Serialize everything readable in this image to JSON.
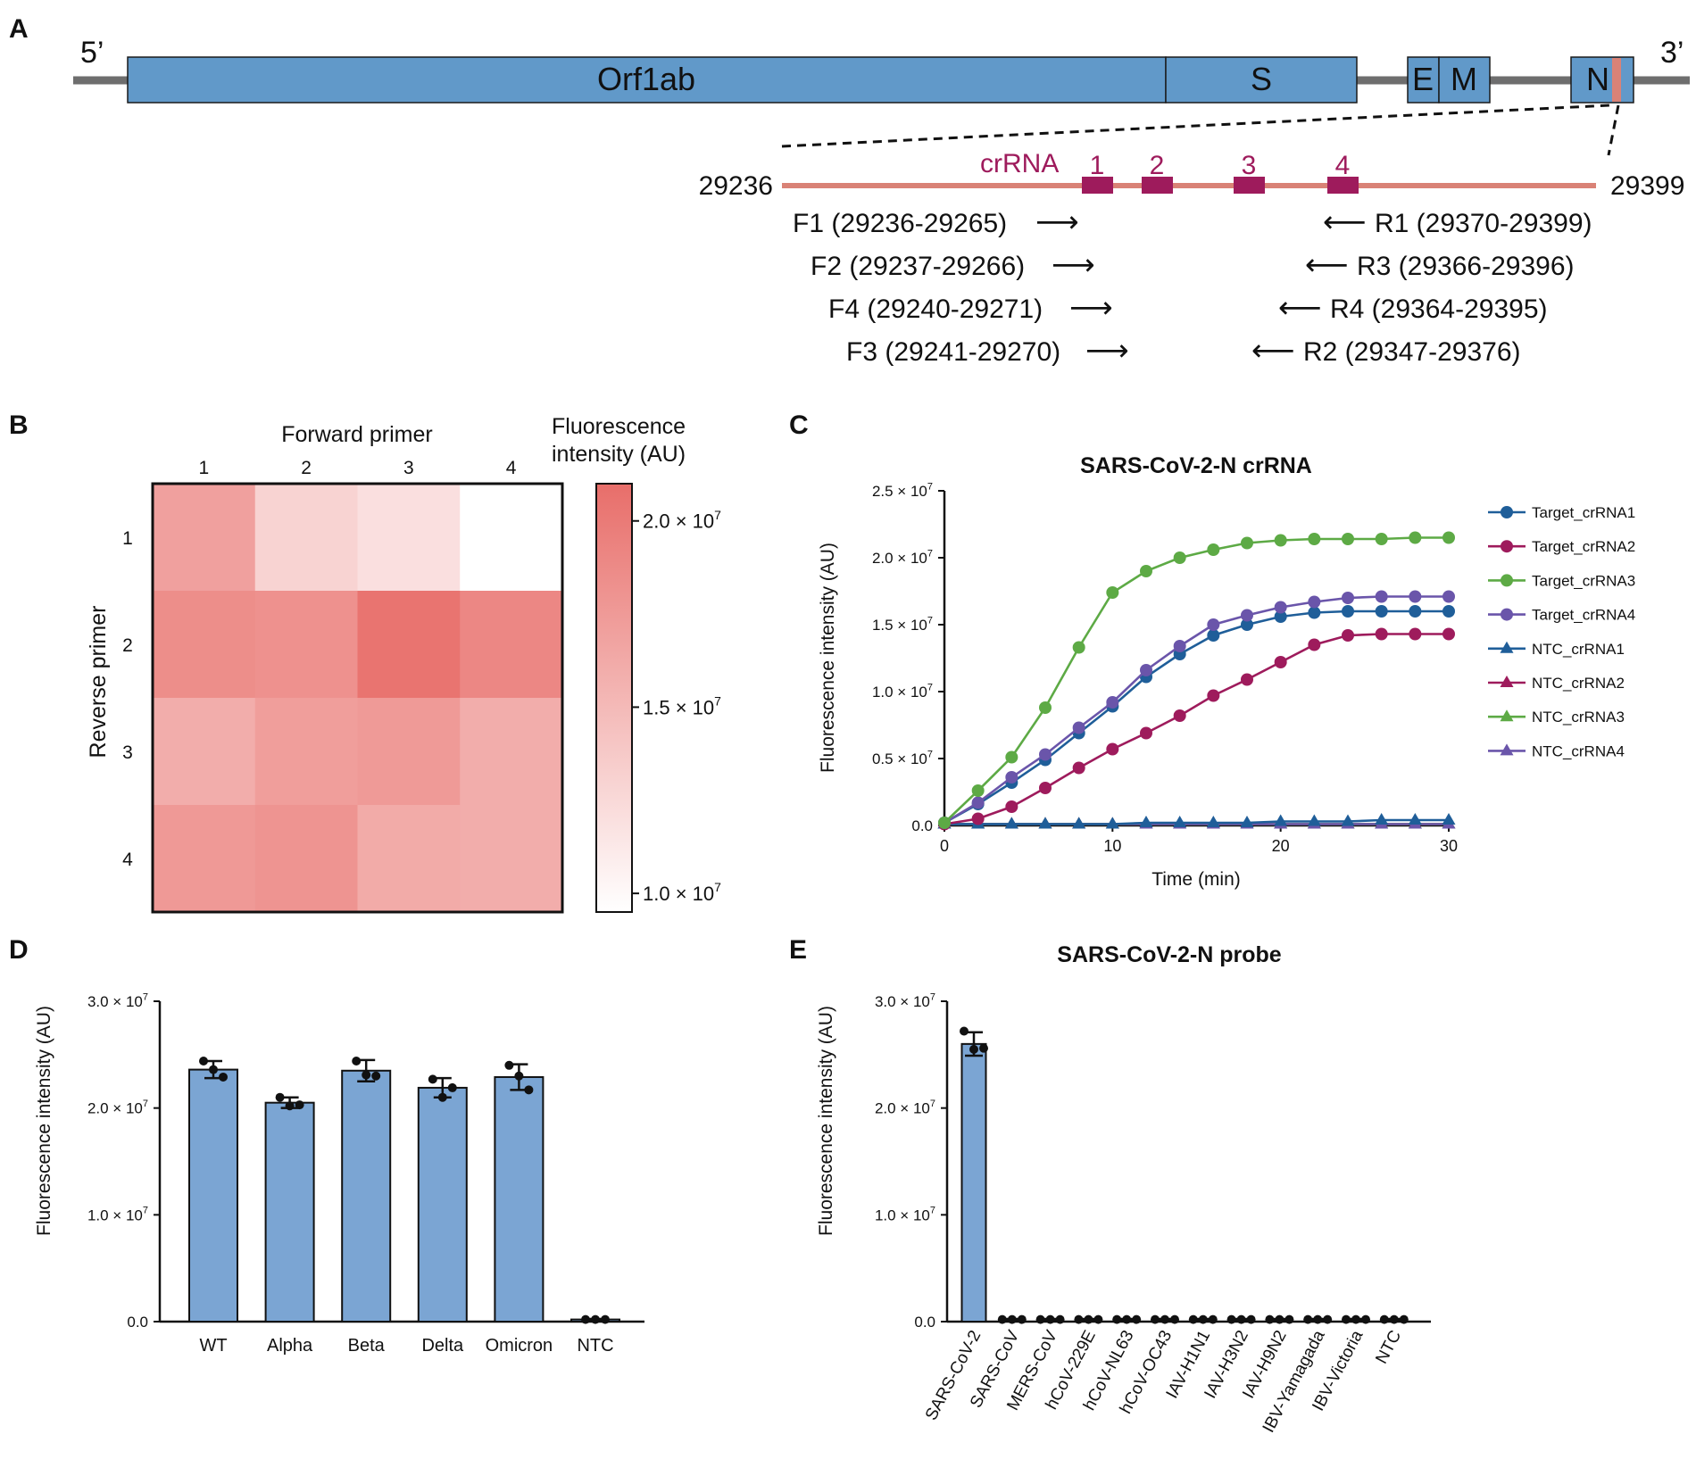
{
  "colors": {
    "gene_blue": "#6199C9",
    "backbone_gray": "#6E6E6E",
    "amplicon_salmon": "#D98276",
    "crrna_magenta": "#9E1B5C",
    "bar_blue": "#7BA5D3",
    "heat_max": "#E86E6A",
    "series": [
      "#1F5E99",
      "#9E1B5C",
      "#5DAA45",
      "#6A55AA",
      "#1F5E99",
      "#9E1B5C",
      "#5DAA45",
      "#6A55AA"
    ]
  },
  "panelA": {
    "panel_label": "A",
    "five_prime": "5’",
    "three_prime": "3’",
    "genes": [
      "Orf1ab",
      "S",
      "E",
      "M",
      "N"
    ],
    "crrna_label": "crRNA",
    "crrna_numbers": [
      "1",
      "2",
      "3",
      "4"
    ],
    "start_pos": "29236",
    "end_pos": "29399",
    "forward_primers": [
      "F1 (29236-29265)",
      "F2 (29237-29266)",
      "F4 (29240-29271)",
      "F3 (29241-29270)"
    ],
    "reverse_primers": [
      "R1 (29370-29399)",
      "R3 (29366-29396)",
      "R4 (29364-29395)",
      "R2 (29347-29376)"
    ],
    "arrow_right": "⟶",
    "arrow_left": "⟵"
  },
  "chart_data": [
    {
      "panel": "B",
      "type": "heatmap",
      "title": "",
      "xlabel": "Forward primer",
      "ylabel": "Reverse primer",
      "x_categories": [
        "1",
        "2",
        "3",
        "4"
      ],
      "y_categories": [
        "1",
        "2",
        "3",
        "4"
      ],
      "values": [
        [
          17000000.0,
          13000000.0,
          12000000.0,
          9500000.0
        ],
        [
          18500000.0,
          18200000.0,
          20500000.0,
          19000000.0
        ],
        [
          16000000.0,
          17200000.0,
          17500000.0,
          16000000.0
        ],
        [
          17600000.0,
          18000000.0,
          16200000.0,
          16000000.0
        ]
      ],
      "colorbar_title": [
        "Fluorescence",
        "intensity (AU)"
      ],
      "colorbar_range": [
        9500000.0,
        21000000.0
      ],
      "colorbar_ticks": [
        {
          "value": 20000000.0,
          "label": "2.0 × 10",
          "exp": "7"
        },
        {
          "value": 15000000.0,
          "label": "1.5 × 10",
          "exp": "7"
        },
        {
          "value": 10000000.0,
          "label": "1.0 × 10",
          "exp": "7"
        }
      ]
    },
    {
      "panel": "C",
      "type": "line",
      "title": "SARS-CoV-2-N crRNA",
      "xlabel": "Time (min)",
      "ylabel": "Fluorescence intensity (AU)",
      "xlim": [
        0,
        30
      ],
      "ylim": [
        0,
        25000000.0
      ],
      "x_ticks": [
        "0",
        "10",
        "20",
        "30"
      ],
      "x_tick_values": [
        0,
        10,
        20,
        30
      ],
      "y_ticks": [
        {
          "value": 0,
          "label": "0.0",
          "exp": ""
        },
        {
          "value": 5000000.0,
          "label": "0.5 × 10",
          "exp": "7"
        },
        {
          "value": 10000000.0,
          "label": "1.0 × 10",
          "exp": "7"
        },
        {
          "value": 15000000.0,
          "label": "1.5 × 10",
          "exp": "7"
        },
        {
          "value": 20000000.0,
          "label": "2.0 × 10",
          "exp": "7"
        },
        {
          "value": 25000000.0,
          "label": "2.5 × 10",
          "exp": "7"
        }
      ],
      "x": [
        0,
        2,
        4,
        6,
        8,
        10,
        12,
        14,
        16,
        18,
        20,
        22,
        24,
        26,
        28,
        30
      ],
      "series": [
        {
          "name": "Target_crRNA1",
          "marker": "circle",
          "values": [
            200000.0,
            1600000.0,
            3200000.0,
            4900000.0,
            6900000.0,
            8900000.0,
            11100000.0,
            12800000.0,
            14200000.0,
            15000000.0,
            15600000.0,
            15900000.0,
            16000000.0,
            16000000.0,
            16000000.0,
            16000000.0
          ]
        },
        {
          "name": "Target_crRNA2",
          "marker": "circle",
          "values": [
            100000.0,
            500000.0,
            1400000.0,
            2800000.0,
            4300000.0,
            5700000.0,
            6900000.0,
            8200000.0,
            9700000.0,
            10900000.0,
            12200000.0,
            13500000.0,
            14200000.0,
            14300000.0,
            14300000.0,
            14300000.0
          ]
        },
        {
          "name": "Target_crRNA3",
          "marker": "circle",
          "values": [
            200000.0,
            2600000.0,
            5100000.0,
            8800000.0,
            13300000.0,
            17400000.0,
            19000000.0,
            20000000.0,
            20600000.0,
            21100000.0,
            21300000.0,
            21400000.0,
            21400000.0,
            21400000.0,
            21500000.0,
            21500000.0
          ]
        },
        {
          "name": "Target_crRNA4",
          "marker": "circle",
          "values": [
            200000.0,
            1700000.0,
            3600000.0,
            5300000.0,
            7300000.0,
            9200000.0,
            11600000.0,
            13400000.0,
            15000000.0,
            15700000.0,
            16300000.0,
            16700000.0,
            17000000.0,
            17100000.0,
            17100000.0,
            17100000.0
          ]
        },
        {
          "name": "NTC_crRNA1",
          "marker": "triangle",
          "values": [
            100000.0,
            100000.0,
            100000.0,
            100000.0,
            100000.0,
            100000.0,
            200000.0,
            200000.0,
            200000.0,
            200000.0,
            300000.0,
            300000.0,
            300000.0,
            400000.0,
            400000.0,
            400000.0
          ]
        },
        {
          "name": "NTC_crRNA2",
          "marker": "triangle",
          "values": [
            100000.0,
            100000.0,
            100000.0,
            100000.0,
            100000.0,
            100000.0,
            100000.0,
            100000.0,
            100000.0,
            100000.0,
            100000.0,
            100000.0,
            100000.0,
            100000.0,
            100000.0,
            100000.0
          ]
        },
        {
          "name": "NTC_crRNA3",
          "marker": "triangle",
          "values": [
            100000.0,
            100000.0,
            100000.0,
            100000.0,
            100000.0,
            100000.0,
            100000.0,
            100000.0,
            100000.0,
            100000.0,
            100000.0,
            100000.0,
            100000.0,
            100000.0,
            100000.0,
            100000.0
          ]
        },
        {
          "name": "NTC_crRNA4",
          "marker": "triangle",
          "values": [
            100000.0,
            100000.0,
            100000.0,
            100000.0,
            100000.0,
            100000.0,
            100000.0,
            100000.0,
            100000.0,
            100000.0,
            100000.0,
            100000.0,
            100000.0,
            100000.0,
            100000.0,
            100000.0
          ]
        }
      ],
      "legend_position": "right"
    },
    {
      "panel": "D",
      "type": "bar",
      "title": "",
      "xlabel": "",
      "ylabel": "Fluorescence intensity (AU)",
      "ylim": [
        0,
        30000000.0
      ],
      "y_ticks": [
        {
          "value": 0,
          "label": "0.0",
          "exp": ""
        },
        {
          "value": 10000000.0,
          "label": "1.0 × 10",
          "exp": "7"
        },
        {
          "value": 20000000.0,
          "label": "2.0 × 10",
          "exp": "7"
        },
        {
          "value": 30000000.0,
          "label": "3.0 × 10",
          "exp": "7"
        }
      ],
      "categories": [
        "WT",
        "Alpha",
        "Beta",
        "Delta",
        "Omicron",
        "NTC"
      ],
      "values": [
        23600000.0,
        20500000.0,
        23500000.0,
        21900000.0,
        22900000.0,
        200000.0
      ],
      "errors": [
        800000.0,
        500000.0,
        1000000.0,
        900000.0,
        1200000.0,
        50000.0
      ],
      "points": [
        [
          24400000.0,
          23600000.0,
          22900000.0
        ],
        [
          21000000.0,
          20200000.0,
          20300000.0
        ],
        [
          24400000.0,
          23100000.0,
          23000000.0
        ],
        [
          22700000.0,
          21000000.0,
          21900000.0
        ],
        [
          24000000.0,
          23000000.0,
          21700000.0
        ],
        [
          200000.0,
          200000.0,
          200000.0
        ]
      ]
    },
    {
      "panel": "E",
      "type": "bar",
      "title": "SARS-CoV-2-N probe",
      "xlabel": "",
      "ylabel": "Fluorescence intensity (AU)",
      "ylim": [
        0,
        30000000.0
      ],
      "y_ticks": [
        {
          "value": 0,
          "label": "0.0",
          "exp": ""
        },
        {
          "value": 10000000.0,
          "label": "1.0 × 10",
          "exp": "7"
        },
        {
          "value": 20000000.0,
          "label": "2.0 × 10",
          "exp": "7"
        },
        {
          "value": 30000000.0,
          "label": "3.0 × 10",
          "exp": "7"
        }
      ],
      "categories": [
        "SARS-CoV-2",
        "SARS-CoV",
        "MERS-CoV",
        "hCoV-229E",
        "hCoV-NL63",
        "hCoV-OC43",
        "IAV-H1N1",
        "IAV-H3N2",
        "IAV-H9N2",
        "IBV-Yamagada",
        "IBV-Victoria",
        "NTC"
      ],
      "values": [
        26000000.0,
        200000.0,
        200000.0,
        200000.0,
        200000.0,
        200000.0,
        200000.0,
        200000.0,
        200000.0,
        200000.0,
        200000.0,
        200000.0
      ],
      "errors": [
        1100000.0,
        50000.0,
        50000.0,
        50000.0,
        50000.0,
        50000.0,
        50000.0,
        50000.0,
        50000.0,
        50000.0,
        50000.0,
        50000.0
      ],
      "points": [
        [
          27200000.0,
          25500000.0,
          25600000.0
        ],
        [
          200000.0,
          200000.0,
          200000.0
        ],
        [
          200000.0,
          200000.0,
          200000.0
        ],
        [
          200000.0,
          200000.0,
          200000.0
        ],
        [
          200000.0,
          200000.0,
          200000.0
        ],
        [
          200000.0,
          200000.0,
          200000.0
        ],
        [
          200000.0,
          200000.0,
          200000.0
        ],
        [
          200000.0,
          200000.0,
          200000.0
        ],
        [
          200000.0,
          200000.0,
          200000.0
        ],
        [
          200000.0,
          200000.0,
          200000.0
        ],
        [
          200000.0,
          200000.0,
          200000.0
        ],
        [
          200000.0,
          200000.0,
          200000.0
        ]
      ]
    }
  ],
  "panel_labels": {
    "B": "B",
    "C": "C",
    "D": "D",
    "E": "E"
  }
}
